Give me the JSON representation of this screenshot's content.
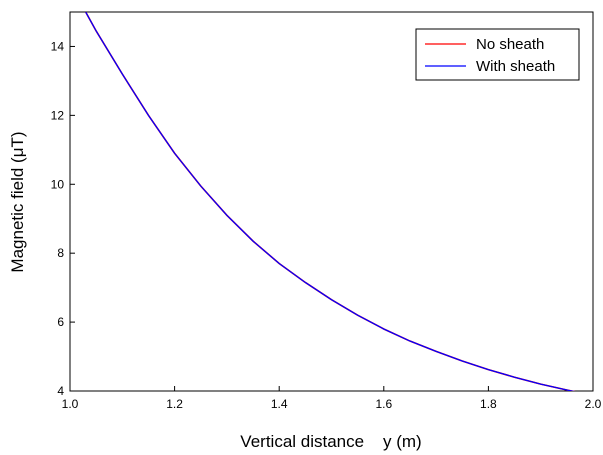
{
  "chart_data": {
    "type": "line",
    "xlabel": "Vertical distance    y (m)",
    "ylabel": "Magnetic field (μT)",
    "xlim": [
      1.0,
      2.0
    ],
    "ylim": [
      4,
      15
    ],
    "xticks": [
      "1.0",
      "1.2",
      "1.4",
      "1.6",
      "1.8",
      "2.0"
    ],
    "yticks": [
      "4",
      "6",
      "8",
      "10",
      "12",
      "14"
    ],
    "grid": false,
    "legend_position": "top-right",
    "series": [
      {
        "name": "No sheath",
        "color": "#ff0000",
        "x": [
          1.03,
          1.05,
          1.1,
          1.15,
          1.2,
          1.25,
          1.3,
          1.35,
          1.4,
          1.45,
          1.5,
          1.55,
          1.6,
          1.65,
          1.7,
          1.75,
          1.8,
          1.85,
          1.9,
          1.95,
          1.975
        ],
        "y": [
          15.0,
          14.45,
          13.2,
          12.0,
          10.9,
          9.95,
          9.1,
          8.35,
          7.7,
          7.15,
          6.65,
          6.2,
          5.8,
          5.45,
          5.15,
          4.87,
          4.62,
          4.4,
          4.2,
          4.03,
          3.95
        ]
      },
      {
        "name": "With sheath",
        "color": "#0000ff",
        "x": [
          1.03,
          1.05,
          1.1,
          1.15,
          1.2,
          1.25,
          1.3,
          1.35,
          1.4,
          1.45,
          1.5,
          1.55,
          1.6,
          1.65,
          1.7,
          1.75,
          1.8,
          1.85,
          1.9,
          1.95,
          1.975
        ],
        "y": [
          15.0,
          14.45,
          13.2,
          12.0,
          10.9,
          9.95,
          9.1,
          8.35,
          7.7,
          7.15,
          6.65,
          6.2,
          5.8,
          5.45,
          5.15,
          4.87,
          4.62,
          4.4,
          4.2,
          4.03,
          3.95
        ]
      }
    ]
  }
}
